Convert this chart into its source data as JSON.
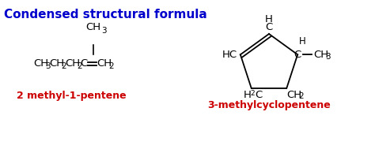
{
  "title": "Condensed structural formula",
  "title_color": "#0000CC",
  "title_fontsize": 11,
  "title_bold": true,
  "label_2methyl": "2 methyl-1-pentene",
  "label_3methyl": "3-methylcyclopentene",
  "label_color": "#CC0000",
  "label_fontsize": 9,
  "bg_color": "#FFFFFF",
  "text_color": "#000000",
  "formula_fontsize": 9.5,
  "sub_fontsize": 7.5
}
